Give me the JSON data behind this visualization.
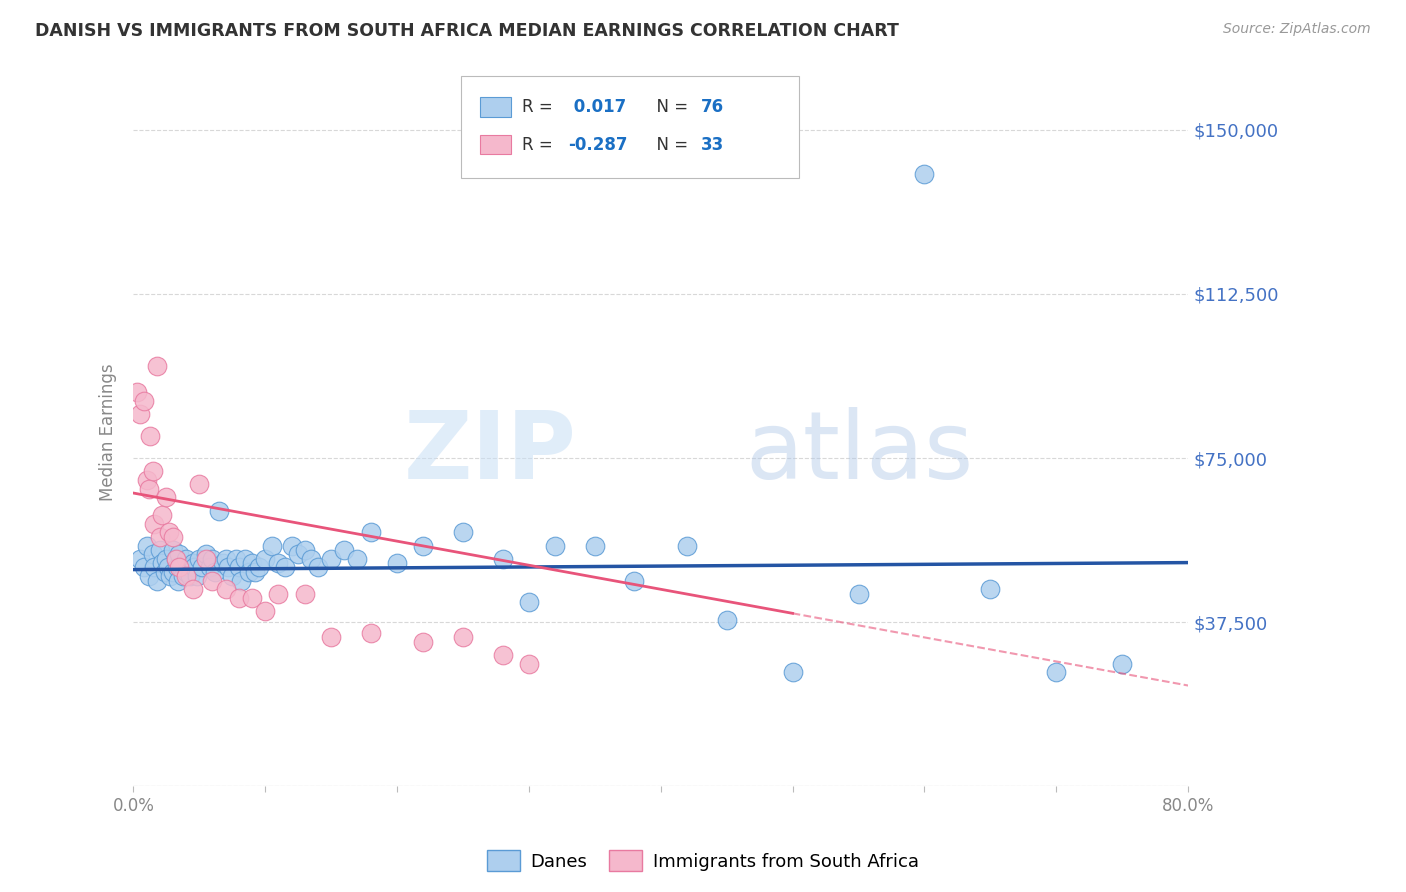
{
  "title": "DANISH VS IMMIGRANTS FROM SOUTH AFRICA MEDIAN EARNINGS CORRELATION CHART",
  "source": "Source: ZipAtlas.com",
  "ylabel": "Median Earnings",
  "yticks": [
    0,
    37500,
    75000,
    112500,
    150000
  ],
  "ytick_labels": [
    "",
    "$37,500",
    "$75,000",
    "$112,500",
    "$150,000"
  ],
  "xlim": [
    0.0,
    0.8
  ],
  "ylim": [
    0,
    162000
  ],
  "watermark_zip": "ZIP",
  "watermark_atlas": "atlas",
  "legend_r_danes": " 0.017",
  "legend_n_danes": "76",
  "legend_r_immigrants": "-0.287",
  "legend_n_immigrants": "33",
  "danes_color": "#aecfee",
  "immigrants_color": "#f5b8cc",
  "danes_edge_color": "#5b9bd5",
  "immigrants_edge_color": "#e87aa0",
  "danes_line_color": "#2455a4",
  "immigrants_line_color": "#e8547a",
  "danes_scatter_x": [
    0.005,
    0.008,
    0.01,
    0.012,
    0.015,
    0.016,
    0.018,
    0.02,
    0.022,
    0.024,
    0.025,
    0.026,
    0.028,
    0.03,
    0.03,
    0.032,
    0.033,
    0.034,
    0.035,
    0.036,
    0.038,
    0.04,
    0.04,
    0.042,
    0.043,
    0.045,
    0.046,
    0.048,
    0.05,
    0.052,
    0.055,
    0.058,
    0.06,
    0.062,
    0.065,
    0.068,
    0.07,
    0.072,
    0.075,
    0.078,
    0.08,
    0.082,
    0.085,
    0.088,
    0.09,
    0.092,
    0.095,
    0.1,
    0.105,
    0.11,
    0.115,
    0.12,
    0.125,
    0.13,
    0.135,
    0.14,
    0.15,
    0.16,
    0.17,
    0.18,
    0.2,
    0.22,
    0.25,
    0.28,
    0.3,
    0.32,
    0.35,
    0.38,
    0.42,
    0.45,
    0.5,
    0.55,
    0.6,
    0.65,
    0.7,
    0.75
  ],
  "danes_scatter_y": [
    52000,
    50000,
    55000,
    48000,
    53000,
    50000,
    47000,
    54000,
    51000,
    49000,
    52000,
    50000,
    48000,
    54000,
    49000,
    52000,
    50000,
    47000,
    53000,
    50000,
    48000,
    52000,
    49000,
    50000,
    48000,
    51000,
    50000,
    48000,
    52000,
    50000,
    53000,
    50000,
    52000,
    49000,
    63000,
    51000,
    52000,
    50000,
    48000,
    52000,
    50000,
    47000,
    52000,
    49000,
    51000,
    49000,
    50000,
    52000,
    55000,
    51000,
    50000,
    55000,
    53000,
    54000,
    52000,
    50000,
    52000,
    54000,
    52000,
    58000,
    51000,
    55000,
    58000,
    52000,
    42000,
    55000,
    55000,
    47000,
    55000,
    38000,
    26000,
    44000,
    140000,
    45000,
    26000,
    28000
  ],
  "immigrants_scatter_x": [
    0.003,
    0.005,
    0.008,
    0.01,
    0.012,
    0.013,
    0.015,
    0.016,
    0.018,
    0.02,
    0.022,
    0.025,
    0.027,
    0.03,
    0.032,
    0.035,
    0.04,
    0.045,
    0.05,
    0.055,
    0.06,
    0.07,
    0.08,
    0.09,
    0.1,
    0.11,
    0.13,
    0.15,
    0.18,
    0.22,
    0.25,
    0.28,
    0.3
  ],
  "immigrants_scatter_y": [
    90000,
    85000,
    88000,
    70000,
    68000,
    80000,
    72000,
    60000,
    96000,
    57000,
    62000,
    66000,
    58000,
    57000,
    52000,
    50000,
    48000,
    45000,
    69000,
    52000,
    47000,
    45000,
    43000,
    43000,
    40000,
    44000,
    44000,
    34000,
    35000,
    33000,
    34000,
    30000,
    28000
  ],
  "background_color": "#ffffff",
  "grid_color": "#d8d8d8",
  "title_color": "#333333",
  "axis_label_color": "#888888",
  "ytick_color": "#4472c4",
  "xtick_color": "#888888"
}
